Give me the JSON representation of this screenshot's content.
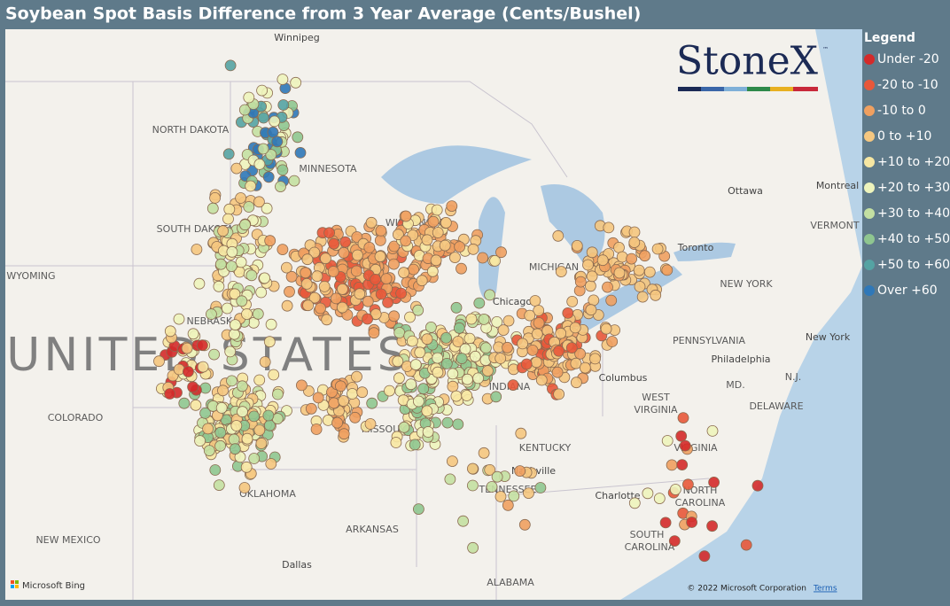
{
  "header": {
    "title": "Soybean Spot Basis Difference from 3 Year Average (Cents/Bushel)"
  },
  "legend": {
    "title": "Legend",
    "items": [
      {
        "label": "Under -20",
        "color": "#d42a2a"
      },
      {
        "label": "-20 to -10",
        "color": "#e8583a"
      },
      {
        "label": "-10 to 0",
        "color": "#f0a060"
      },
      {
        "label": "0 to +10",
        "color": "#f5c780"
      },
      {
        "label": "+10 to +20",
        "color": "#f7e7a2"
      },
      {
        "label": "+20 to +30",
        "color": "#eef4bc"
      },
      {
        "label": "+30 to +40",
        "color": "#c4e0a2"
      },
      {
        "label": "+40 to +50",
        "color": "#8fc690"
      },
      {
        "label": "+50 to +60",
        "color": "#55a3a3"
      },
      {
        "label": "Over +60",
        "color": "#2f78b8"
      }
    ]
  },
  "logo": {
    "text": "StoneX",
    "mark": "™"
  },
  "map_labels": [
    "Winnipeg",
    "NORTH DAKOTA",
    "MINNESOTA",
    "SOUTH DAKOTA",
    "WYOMING",
    "NEBRASKA",
    "UNITED STATES",
    "COLORADO",
    "MISSOURI",
    "KENTUCKY",
    "TENNESSEE",
    "ARKANSAS",
    "OKLAHOMA",
    "NEW MEXICO",
    "Dallas",
    "ALABAMA",
    "Nashville",
    "Charlotte",
    "NORTH",
    "CAROLINA",
    "SOUTH",
    "CAROLINA",
    "VIRGINIA",
    "WEST",
    "VIRGINIA",
    "PENNSYLVANIA",
    "Philadelphia",
    "MD.",
    "DELAWARE",
    "N.J.",
    "New York",
    "NEW YORK",
    "Toronto",
    "Ottawa",
    "Montreal",
    "VERMONT",
    "WISCONSIN",
    "Chicago",
    "INDIANA",
    "Columbus",
    "MICHIGAN"
  ],
  "attribution": {
    "provider": "Microsoft Bing",
    "copyright": "© 2022 Microsoft Corporation",
    "terms": "Terms"
  }
}
